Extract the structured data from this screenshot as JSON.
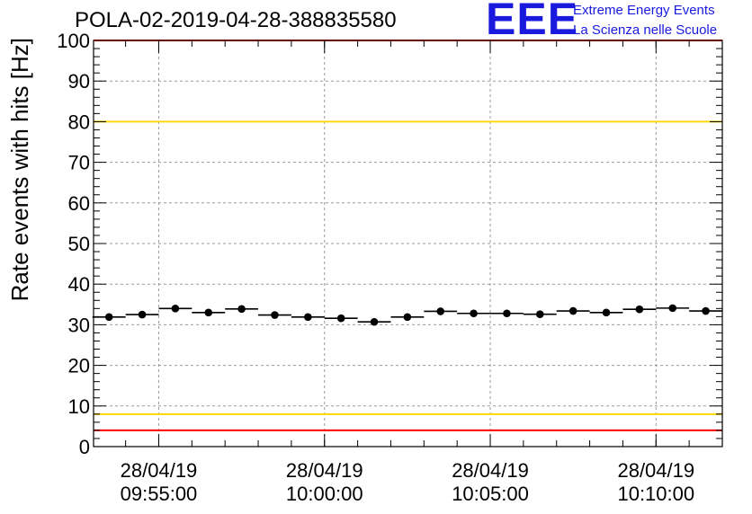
{
  "header": {
    "title": "POLA-02-2019-04-28-388835580",
    "logo_mark": "EEE",
    "logo_line1": "Extreme Energy Events",
    "logo_line2": "La Scienza nelle Scuole"
  },
  "colors": {
    "threshold_red": "#ff0000",
    "threshold_yellow": "#ffd700",
    "logo_blue": "#1a1adf",
    "marker": "#000000",
    "grid": "#9a9a9a"
  },
  "chart_data": {
    "type": "scatter",
    "title": "POLA-02-2019-04-28-388835580",
    "xlabel": "",
    "ylabel": "Rate events with hits [Hz]",
    "ylim": [
      0,
      100
    ],
    "xlim": [
      "2019-04-28 09:53:02",
      "2019-04-28 10:12:00"
    ],
    "grid": true,
    "y_ticks": [
      "0",
      "10",
      "20",
      "30",
      "40",
      "50",
      "60",
      "70",
      "80",
      "90",
      "100"
    ],
    "x_ticks": [
      {
        "time": "2019-04-28 09:55:00",
        "date": "28/04/19",
        "clock": "09:55:00"
      },
      {
        "time": "2019-04-28 10:00:00",
        "date": "28/04/19",
        "clock": "10:00:00"
      },
      {
        "time": "2019-04-28 10:05:00",
        "date": "28/04/19",
        "clock": "10:05:00"
      },
      {
        "time": "2019-04-28 10:10:00",
        "date": "28/04/19",
        "clock": "10:10:00"
      }
    ],
    "threshold_lines": [
      {
        "value": 100,
        "color": "red"
      },
      {
        "value": 80,
        "color": "yellow"
      },
      {
        "value": 8,
        "color": "yellow"
      },
      {
        "value": 4,
        "color": "red"
      }
    ],
    "series": [
      {
        "points": [
          {
            "x": "2019-04-28 09:53:30",
            "y": 31.9
          },
          {
            "x": "2019-04-28 09:54:30",
            "y": 32.5
          },
          {
            "x": "2019-04-28 09:55:30",
            "y": 34.0
          },
          {
            "x": "2019-04-28 09:56:30",
            "y": 33.0
          },
          {
            "x": "2019-04-28 09:57:30",
            "y": 33.9
          },
          {
            "x": "2019-04-28 09:58:30",
            "y": 32.4
          },
          {
            "x": "2019-04-28 09:59:30",
            "y": 31.9
          },
          {
            "x": "2019-04-28 10:00:30",
            "y": 31.6
          },
          {
            "x": "2019-04-28 10:01:30",
            "y": 30.7
          },
          {
            "x": "2019-04-28 10:02:30",
            "y": 31.9
          },
          {
            "x": "2019-04-28 10:03:30",
            "y": 33.3
          },
          {
            "x": "2019-04-28 10:04:30",
            "y": 32.8
          },
          {
            "x": "2019-04-28 10:05:30",
            "y": 32.8
          },
          {
            "x": "2019-04-28 10:06:30",
            "y": 32.6
          },
          {
            "x": "2019-04-28 10:07:30",
            "y": 33.4
          },
          {
            "x": "2019-04-28 10:08:30",
            "y": 33.0
          },
          {
            "x": "2019-04-28 10:09:30",
            "y": 33.8
          },
          {
            "x": "2019-04-28 10:10:30",
            "y": 34.1
          },
          {
            "x": "2019-04-28 10:11:30",
            "y": 33.4
          }
        ]
      }
    ]
  }
}
